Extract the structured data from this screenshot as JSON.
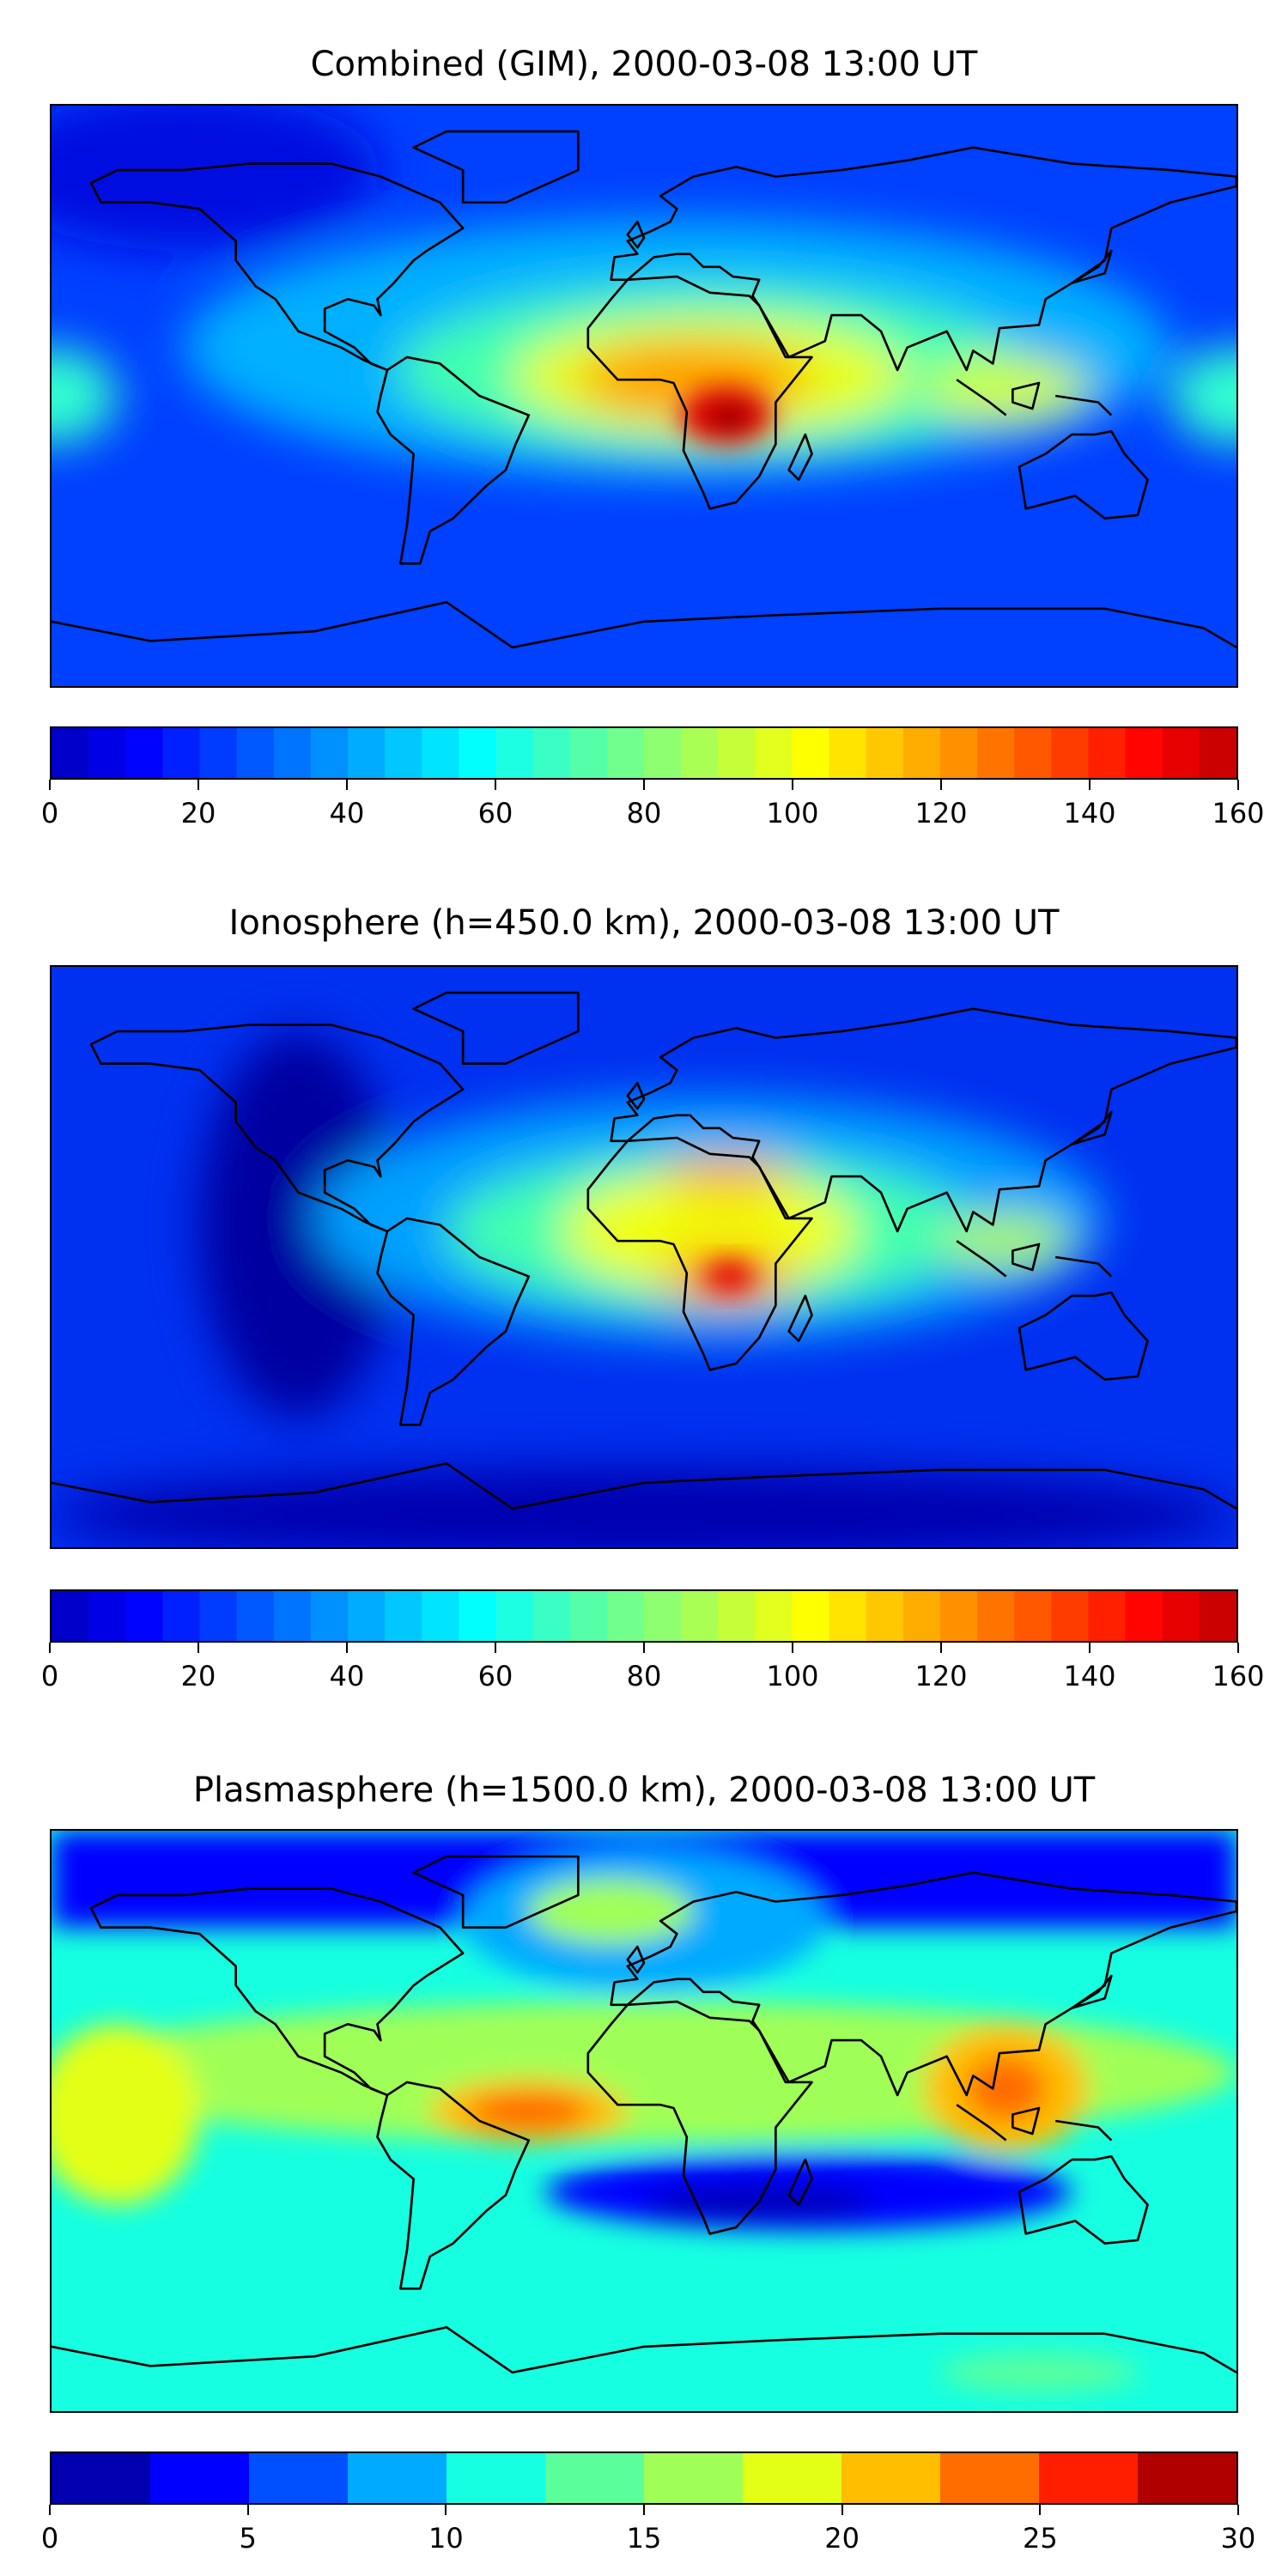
{
  "chart_data": [
    {
      "type": "heatmap",
      "title": "Combined (GIM), 2000-03-08 13:00 UT",
      "projection": "equirectangular world map with coastlines",
      "colorbar": {
        "min": 0,
        "max": 160,
        "step": 5,
        "ticks": [
          "0",
          "20",
          "40",
          "60",
          "80",
          "100",
          "120",
          "140",
          "160"
        ],
        "colormap": "jet"
      },
      "features": [
        {
          "region": "Southern Africa",
          "value": 155
        },
        {
          "region": "Equatorial Atlantic / Africa band",
          "value": 120
        },
        {
          "region": "Indonesia",
          "value": 105
        },
        {
          "region": "Mid-Pacific equatorial",
          "value": 60
        },
        {
          "region": "Polar regions",
          "value": 20
        }
      ]
    },
    {
      "type": "heatmap",
      "title": "Ionosphere  (h=450.0 km), 2000-03-08 13:00 UT",
      "projection": "equirectangular world map with coastlines",
      "colorbar": {
        "min": 0,
        "max": 160,
        "step": 5,
        "ticks": [
          "0",
          "20",
          "40",
          "60",
          "80",
          "100",
          "120",
          "140",
          "160"
        ],
        "colormap": "jet"
      },
      "features": [
        {
          "region": "Southern Africa",
          "value": 135
        },
        {
          "region": "North Africa",
          "value": 110
        },
        {
          "region": "Indonesia",
          "value": 90
        },
        {
          "region": "Eastern Pacific",
          "value": 10
        },
        {
          "region": "Polar regions",
          "value": 10
        }
      ]
    },
    {
      "type": "heatmap",
      "title": "Plasmasphere (h=1500.0 km), 2000-03-08 13:00 UT",
      "projection": "equirectangular world map with coastlines",
      "colorbar": {
        "min": 0,
        "max": 30,
        "step": 2.5,
        "ticks": [
          "0",
          "5",
          "10",
          "15",
          "20",
          "25",
          "30"
        ],
        "colors": [
          "#0000b0",
          "#0000ff",
          "#0050ff",
          "#00aaff",
          "#16ffe1",
          "#5aff9c",
          "#a0ff56",
          "#e4ff16",
          "#ffbe00",
          "#ff6c00",
          "#ff1e00",
          "#b00000"
        ]
      },
      "features": [
        {
          "region": "South Atlantic off Brazil",
          "value": 24
        },
        {
          "region": "South China Sea / Borneo",
          "value": 24
        },
        {
          "region": "Central Pacific",
          "value": 21
        },
        {
          "region": "Southern Indian Ocean",
          "value": 2
        },
        {
          "region": "Arctic",
          "value": 3
        }
      ]
    }
  ]
}
